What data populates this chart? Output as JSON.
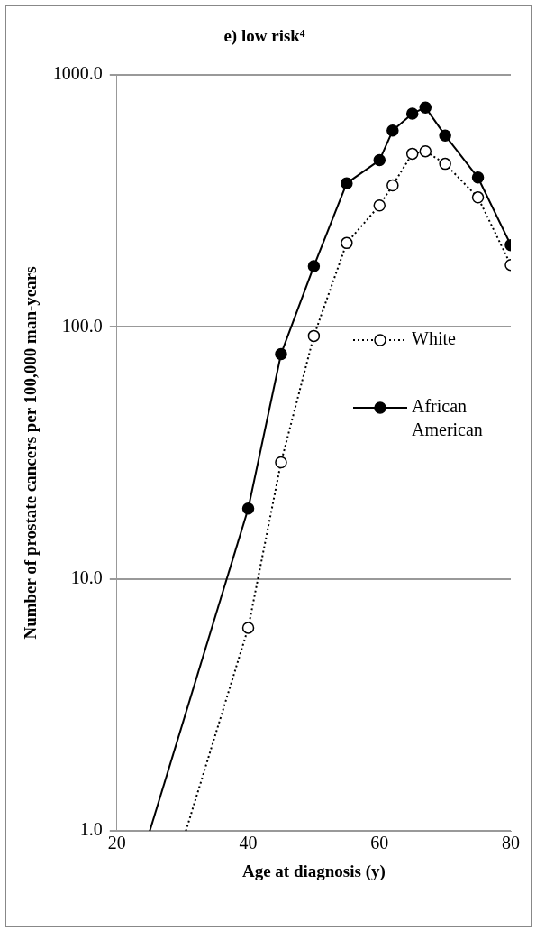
{
  "chart_data": {
    "type": "line",
    "title": "e) low risk⁴",
    "xlabel": "Age at diagnosis (y)",
    "ylabel": "Number of prostate cancers per 100,000 man-years",
    "x": [
      40,
      45,
      50,
      55,
      60,
      62,
      65,
      67,
      70,
      75,
      80
    ],
    "series": [
      {
        "name": "White",
        "color": "#000000",
        "line_style": "dotted",
        "marker": "circle",
        "values": [
          6.4,
          29,
          92,
          215,
          303,
          364,
          486,
          497,
          443,
          326,
          176
        ]
      },
      {
        "name": "African American",
        "color": "#000000",
        "line_style": "solid",
        "marker": "circle",
        "values": [
          19,
          78,
          174,
          371,
          458,
          600,
          701,
          741,
          574,
          391,
          211
        ]
      },
      {
        "type": "line",
        "color": "#000000",
        "line_style": "dotted",
        "marker": "none",
        "x": [
          30.5,
          40
        ],
        "values": [
          1,
          6.4
        ]
      },
      {
        "type": "line",
        "color": "#000000",
        "line_style": "solid",
        "marker": "none",
        "x": [
          25,
          40
        ],
        "values": [
          1,
          19
        ]
      }
    ],
    "log": "y",
    "xlim": [
      20,
      80
    ],
    "xticks": [
      20,
      40,
      60,
      80
    ],
    "ylim": [
      1,
      1000
    ],
    "yticks": [
      {
        "value": 1,
        "label": "1.0"
      },
      {
        "value": 10,
        "label": "10.0"
      },
      {
        "value": 100,
        "label": "100.0"
      },
      {
        "value": 1000,
        "label": "1000.0"
      }
    ],
    "grid": "y",
    "legend": "right"
  }
}
